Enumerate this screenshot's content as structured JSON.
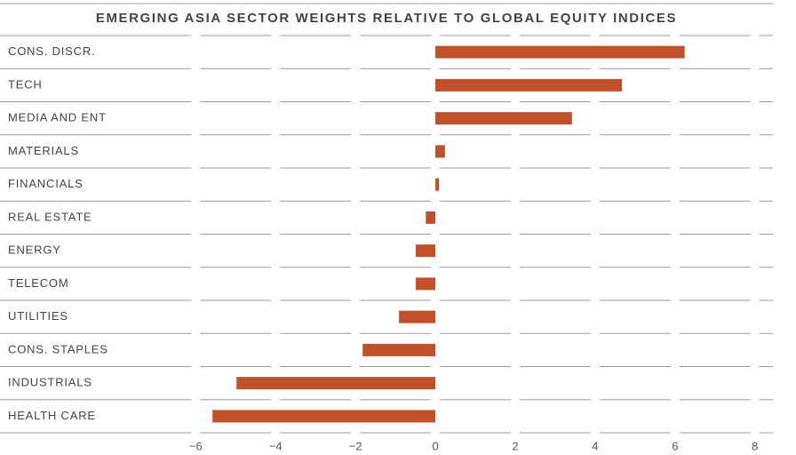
{
  "chart_data": {
    "type": "hbar",
    "title": "EMERGING ASIA SECTOR WEIGHTS RELATIVE TO GLOBAL EQUITY INDICES",
    "categories": [
      "CONS. DISCR.",
      "TECH",
      "MEDIA AND ENT",
      "MATERIALS",
      "FINANCIALS",
      "REAL ESTATE",
      "ENERGY",
      "TELECOM",
      "UTILITIES",
      "CONS. STAPLES",
      "INDUSTRIALS",
      "HEALTH CARE"
    ],
    "values": [
      6.24,
      4.67,
      3.42,
      0.24,
      0.09,
      -0.24,
      -0.49,
      -0.49,
      -0.91,
      -1.82,
      -4.98,
      -5.58
    ],
    "color": "#c0502a",
    "xlim": [
      -10.9,
      8.45
    ],
    "xticks": [
      {
        "value": -6,
        "label": "−6"
      },
      {
        "value": -4,
        "label": "−4"
      },
      {
        "value": -2,
        "label": "−2"
      },
      0,
      2,
      4,
      6,
      8
    ],
    "grid": true
  }
}
